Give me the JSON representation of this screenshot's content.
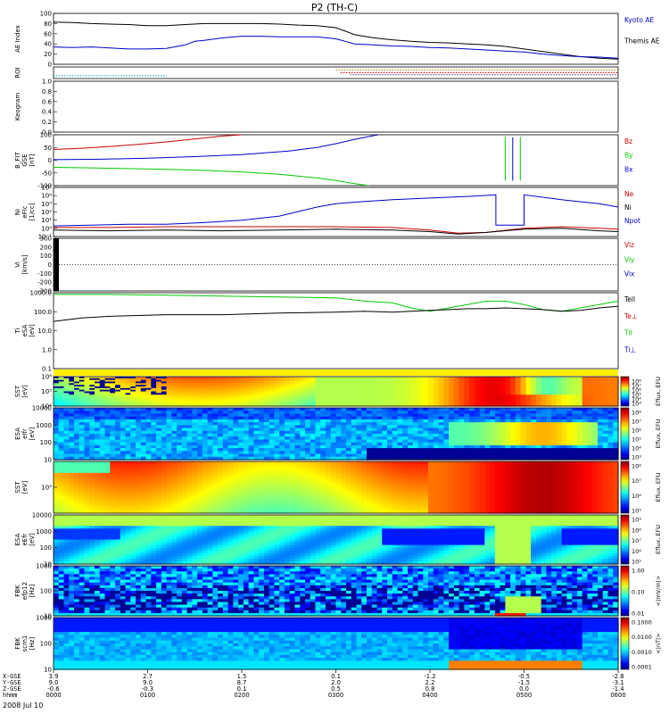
{
  "title": "P2 (TH-C)",
  "date_label": "2008 Jul 10",
  "colors": {
    "frame": "#000000",
    "blue": "#0000cc",
    "red": "#cc0000",
    "green": "#00cc00",
    "cyan": "#00aacc",
    "orange": "#cc6600",
    "purple": "#663399"
  },
  "chart_data": [
    {
      "id": "ae",
      "type": "line",
      "ylabel": [
        "AE Index"
      ],
      "yticks": [
        "100",
        "80",
        "60",
        "40",
        "20",
        "0"
      ],
      "ylim": [
        0,
        100
      ],
      "legend": [
        {
          "name": "Kyoto AE",
          "color": "blue"
        },
        {
          "name": "Themis AE",
          "color": "frame"
        }
      ],
      "series": [
        {
          "name": "Themis AE",
          "color": "frame",
          "x": [
            0,
            20,
            40,
            60,
            80,
            100,
            120,
            140,
            160,
            180,
            200,
            220,
            240,
            260,
            280,
            300,
            310,
            320,
            340,
            360,
            380,
            400,
            420,
            440,
            460,
            480,
            500,
            520,
            540,
            560,
            580,
            600
          ],
          "y": [
            83,
            82,
            80,
            79,
            78,
            76,
            76,
            78,
            80,
            80,
            80,
            80,
            79,
            77,
            76,
            72,
            65,
            58,
            52,
            48,
            45,
            43,
            42,
            40,
            38,
            35,
            30,
            25,
            20,
            15,
            12,
            10
          ]
        },
        {
          "name": "Kyoto AE",
          "color": "blue",
          "x": [
            0,
            20,
            40,
            60,
            80,
            100,
            120,
            140,
            150,
            160,
            180,
            200,
            220,
            240,
            260,
            280,
            300,
            310,
            320,
            340,
            360,
            380,
            400,
            420,
            440,
            460,
            480,
            500,
            520,
            540,
            560,
            580,
            600
          ],
          "y": [
            34,
            33,
            34,
            32,
            30,
            30,
            31,
            38,
            45,
            47,
            52,
            55,
            55,
            54,
            54,
            54,
            50,
            45,
            40,
            38,
            36,
            35,
            33,
            32,
            30,
            28,
            26,
            24,
            20,
            17,
            15,
            14,
            12
          ]
        }
      ]
    },
    {
      "id": "roi",
      "type": "line",
      "ylabel": [
        "ROI"
      ],
      "yticks": [],
      "series": [
        {
          "name": "",
          "color": "cyan",
          "x": [
            0,
            120
          ],
          "y": [
            1,
            1
          ]
        },
        {
          "name": "",
          "color": "orange",
          "x": [
            300,
            600
          ],
          "y": [
            3,
            3
          ]
        },
        {
          "name": "",
          "color": "red",
          "x": [
            305,
            600
          ],
          "y": [
            2,
            2
          ]
        },
        {
          "name": "",
          "color": "purple",
          "x": [
            315,
            600
          ],
          "y": [
            1.3,
            1.3
          ]
        }
      ]
    },
    {
      "id": "keogram",
      "type": "line",
      "ylabel": [
        "Keogram"
      ],
      "yticks": [
        "1.0",
        "0.8",
        "0.6",
        "0.4",
        "0.2",
        "0.0"
      ],
      "ylim": [
        0,
        1
      ],
      "series": []
    },
    {
      "id": "bfit",
      "type": "line",
      "ylabel": [
        "B_FIT",
        "GSE",
        "[nT]"
      ],
      "yticks": [
        "100",
        "50",
        "0",
        "-50",
        "-100"
      ],
      "ylim": [
        -100,
        100
      ],
      "legend": [
        {
          "name": "Bz",
          "color": "red"
        },
        {
          "name": "By",
          "color": "green"
        },
        {
          "name": "Bx",
          "color": "blue"
        }
      ],
      "series": [
        {
          "name": "Bz",
          "color": "red",
          "x": [
            0,
            30,
            60,
            90,
            120,
            150,
            180,
            200
          ],
          "y": [
            42,
            47,
            54,
            62,
            72,
            83,
            95,
            100
          ]
        },
        {
          "name": "By",
          "color": "green",
          "x": [
            0,
            40,
            80,
            120,
            160,
            200,
            240,
            280,
            300,
            320,
            335
          ],
          "y": [
            -28,
            -30,
            -33,
            -36,
            -40,
            -46,
            -55,
            -70,
            -80,
            -92,
            -100
          ]
        },
        {
          "name": "Bx",
          "color": "blue",
          "x": [
            0,
            50,
            100,
            150,
            200,
            250,
            280,
            300,
            320,
            345
          ],
          "y": [
            2,
            4,
            8,
            14,
            22,
            36,
            50,
            65,
            82,
            100
          ]
        },
        {
          "name": "",
          "color": "green",
          "x": [
            480,
            480
          ],
          "y": [
            -80,
            92
          ]
        },
        {
          "name": "",
          "color": "blue",
          "x": [
            488,
            488
          ],
          "y": [
            -80,
            90
          ]
        },
        {
          "name": "",
          "color": "green",
          "x": [
            496,
            496
          ],
          "y": [
            -80,
            92
          ]
        }
      ]
    },
    {
      "id": "ni",
      "type": "line",
      "scale": "log",
      "ylabel": [
        "Ni",
        "eFlc",
        "[1/cc]"
      ],
      "yticks": [
        "10⁵",
        "10⁴",
        "10³",
        "10²",
        "10¹",
        "10⁰",
        "10⁻¹"
      ],
      "ylim_exp": [
        -1,
        5
      ],
      "legend": [
        {
          "name": "Ne",
          "color": "red"
        },
        {
          "name": "Ni",
          "color": "frame"
        },
        {
          "name": "Npot",
          "color": "blue"
        }
      ],
      "series": [
        {
          "name": "Npot",
          "color": "blue",
          "x": [
            0,
            40,
            80,
            120,
            160,
            200,
            240,
            280,
            300,
            320,
            360,
            400,
            440,
            470,
            470,
            500,
            500,
            540,
            580,
            600
          ],
          "y": [
            0.3,
            0.4,
            0.5,
            0.5,
            0.7,
            1.0,
            1.5,
            2.6,
            3.0,
            3.2,
            3.5,
            3.7,
            3.9,
            4.1,
            0.4,
            0.4,
            4.1,
            3.5,
            3.0,
            2.6
          ]
        },
        {
          "name": "Ne",
          "color": "red",
          "x": [
            0,
            60,
            120,
            180,
            240,
            300,
            360,
            400,
            430,
            460,
            500,
            540,
            580,
            600
          ],
          "y": [
            0.1,
            0.1,
            0.2,
            0.2,
            0.2,
            0.2,
            0.1,
            -0.2,
            -0.6,
            -0.5,
            0.0,
            0.2,
            0.0,
            -0.1
          ]
        },
        {
          "name": "Ni",
          "color": "frame",
          "x": [
            0,
            60,
            120,
            180,
            240,
            300,
            360,
            400,
            430,
            460,
            500,
            540,
            580,
            600
          ],
          "y": [
            -0.2,
            -0.3,
            -0.2,
            -0.3,
            -0.2,
            -0.1,
            -0.2,
            -0.4,
            -0.7,
            -0.5,
            -0.1,
            0.0,
            -0.3,
            -0.4
          ]
        }
      ]
    },
    {
      "id": "vi",
      "type": "line",
      "ylabel": [
        "Vi",
        "[km/s]"
      ],
      "yticks": [
        "300",
        "200",
        "100",
        "0",
        "-100",
        "-200",
        "-300"
      ],
      "ylim": [
        -300,
        300
      ],
      "legend": [
        {
          "name": "Viz",
          "color": "red"
        },
        {
          "name": "Viy",
          "color": "green"
        },
        {
          "name": "Vix",
          "color": "blue"
        }
      ],
      "series": []
    },
    {
      "id": "ti",
      "type": "line",
      "scale": "log",
      "ylabel": [
        "Ti",
        "eSA",
        "[eV]"
      ],
      "yticks": [
        "1000.0",
        "100.0",
        "10.0",
        "1.0",
        "0.1"
      ],
      "ylim_exp": [
        -1,
        3.5
      ],
      "legend": [
        {
          "name": "Tell",
          "color": "frame"
        },
        {
          "name": "Te⊥",
          "color": "red"
        },
        {
          "name": "Til",
          "color": "green"
        },
        {
          "name": "Ti⊥",
          "color": "blue"
        }
      ],
      "series": [
        {
          "name": "Til",
          "color": "green",
          "x": [
            0,
            60,
            120,
            180,
            240,
            300,
            330,
            360,
            380,
            400,
            420,
            440,
            460,
            480,
            500,
            520,
            540,
            560,
            580,
            600
          ],
          "y": [
            3.4,
            3.4,
            3.35,
            3.3,
            3.25,
            3.2,
            3.0,
            2.9,
            2.6,
            2.4,
            2.6,
            2.8,
            3.0,
            3.0,
            2.8,
            2.5,
            2.4,
            2.6,
            2.8,
            3.0
          ]
        },
        {
          "name": "Tell",
          "color": "frame",
          "x": [
            0,
            30,
            60,
            120,
            180,
            240,
            300,
            330,
            360,
            380,
            400,
            420,
            440,
            460,
            480,
            500,
            520,
            540,
            560,
            580,
            600
          ],
          "y": [
            1.8,
            2.0,
            2.1,
            2.2,
            2.2,
            2.3,
            2.35,
            2.4,
            2.35,
            2.4,
            2.45,
            2.5,
            2.55,
            2.55,
            2.6,
            2.55,
            2.5,
            2.4,
            2.45,
            2.6,
            2.7
          ]
        }
      ]
    },
    {
      "id": "sst_i",
      "type": "heatmap",
      "ylabel": [
        "SST",
        "[eV]"
      ],
      "yticks": [
        "10⁶",
        "10⁵",
        "10⁴"
      ],
      "colorbar": {
        "label": "Eflux, EFU",
        "ticks": [
          "10⁸",
          "10⁷",
          "10⁶",
          "10⁵",
          "10⁴",
          "10³"
        ]
      }
    },
    {
      "id": "esa_i",
      "type": "heatmap",
      "ylabel": [
        "ESA",
        "eIfr",
        "[eV]"
      ],
      "yticks": [
        "10000",
        "1000",
        "100",
        "10"
      ],
      "colorbar": {
        "label": "Eflux, EFU",
        "ticks": [
          "10⁸",
          "10⁷",
          "10⁶",
          "10⁵",
          "10⁴",
          "10³"
        ]
      }
    },
    {
      "id": "sst_e",
      "type": "heatmap",
      "ylabel": [
        "SST",
        "[eV]"
      ],
      "yticks": [
        "10⁵"
      ],
      "colorbar": {
        "label": "Eflux, EFU",
        "ticks": [
          "10⁸",
          "10⁷",
          "10⁶",
          "10⁵"
        ]
      }
    },
    {
      "id": "esa_e",
      "type": "heatmap",
      "ylabel": [
        "ESA",
        "eEfr",
        "[eV]"
      ],
      "yticks": [
        "10000",
        "1000",
        "100",
        "10"
      ],
      "colorbar": {
        "label": "Eflux, EFU",
        "ticks": [
          "10⁹",
          "10⁸",
          "10⁷",
          "10⁶",
          "10⁵"
        ]
      }
    },
    {
      "id": "fbk_e",
      "type": "heatmap",
      "ylabel": [
        "FBK",
        "efp12",
        "[Hz]"
      ],
      "yticks": [
        "1000",
        "100",
        "10"
      ],
      "colorbar": {
        "label": "<|mV/m|>",
        "ticks": [
          "1.00",
          "0.10",
          "0.01"
        ]
      }
    },
    {
      "id": "fbk_b",
      "type": "heatmap",
      "ylabel": [
        "FBK",
        "scm1",
        "[Hz]"
      ],
      "yticks": [
        "1000",
        "100",
        "10"
      ],
      "colorbar": {
        "label": "<|nT|>",
        "ticks": [
          "0.1000",
          "0.0100",
          "0.0010",
          "0.0001"
        ]
      }
    }
  ],
  "xaxis": {
    "row_labels": [
      "X-GSE",
      "Y-GSE",
      "Z-GSE",
      "hhmm"
    ],
    "ticks": [
      {
        "x": 0,
        "vals": [
          "3.9",
          "9.0",
          "-0.6",
          "0000"
        ]
      },
      {
        "x": 100,
        "vals": [
          "2.7",
          "9.0",
          "-0.3",
          "0100"
        ]
      },
      {
        "x": 200,
        "vals": [
          "1.5",
          "8.7",
          "0.1",
          "0200"
        ]
      },
      {
        "x": 300,
        "vals": [
          "0.1",
          "2.0",
          "0.5",
          "0300"
        ]
      },
      {
        "x": 400,
        "vals": [
          "-1.2",
          "2.2",
          "0.8",
          "0400"
        ]
      },
      {
        "x": 500,
        "vals": [
          "-0.5",
          "-1.5",
          "0.0",
          "0500"
        ]
      },
      {
        "x": 600,
        "vals": [
          "-2.8",
          "-3.1",
          "-1.4",
          "0600"
        ]
      }
    ]
  }
}
